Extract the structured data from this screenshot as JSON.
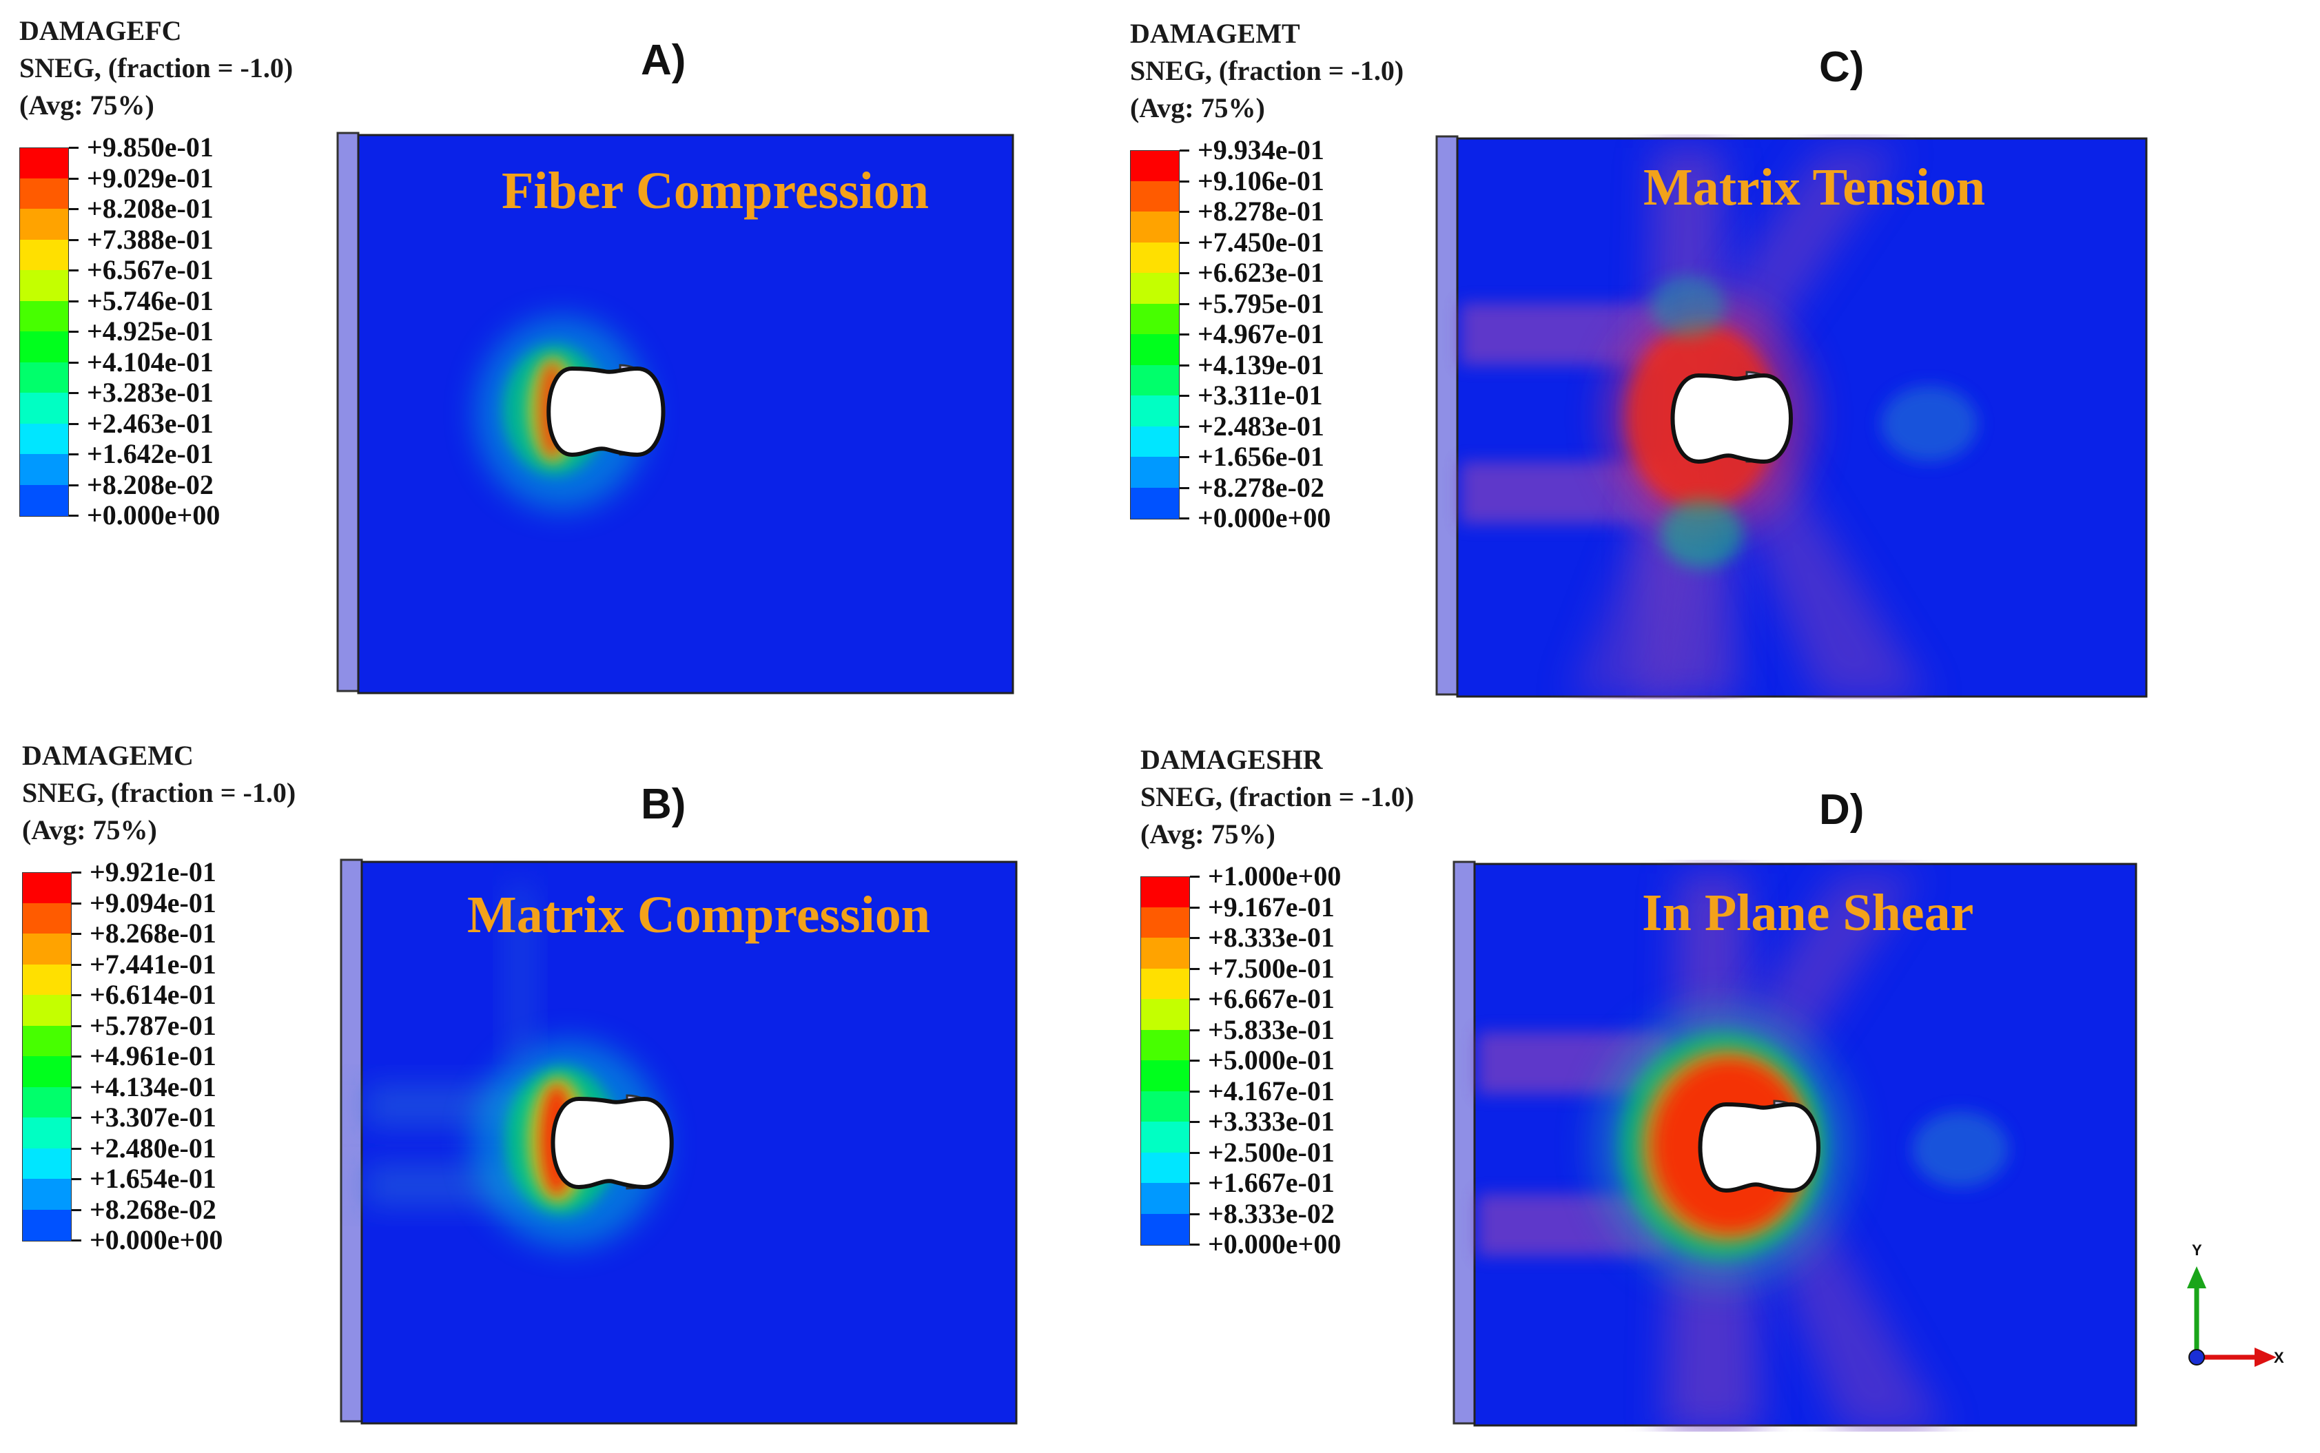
{
  "panels": {
    "a": {
      "letter": "A)",
      "caption": "Fiber Compression",
      "legend": {
        "line1": "DAMAGEFC",
        "line2": "SNEG, (fraction = -1.0)",
        "line3": "(Avg: 75%)",
        "values": [
          "+9.850e-01",
          "+9.029e-01",
          "+8.208e-01",
          "+7.388e-01",
          "+6.567e-01",
          "+5.746e-01",
          "+4.925e-01",
          "+4.104e-01",
          "+3.283e-01",
          "+2.463e-01",
          "+1.642e-01",
          "+8.208e-02",
          "+0.000e+00"
        ]
      }
    },
    "b": {
      "letter": "B)",
      "caption": "Matrix Compression",
      "legend": {
        "line1": "DAMAGEMC",
        "line2": "SNEG, (fraction = -1.0)",
        "line3": "(Avg: 75%)",
        "values": [
          "+9.921e-01",
          "+9.094e-01",
          "+8.268e-01",
          "+7.441e-01",
          "+6.614e-01",
          "+5.787e-01",
          "+4.961e-01",
          "+4.134e-01",
          "+3.307e-01",
          "+2.480e-01",
          "+1.654e-01",
          "+8.268e-02",
          "+0.000e+00"
        ]
      }
    },
    "c": {
      "letter": "C)",
      "caption": "Matrix Tension",
      "legend": {
        "line1": "DAMAGEMT",
        "line2": "SNEG, (fraction = -1.0)",
        "line3": "(Avg: 75%)",
        "values": [
          "+9.934e-01",
          "+9.106e-01",
          "+8.278e-01",
          "+7.450e-01",
          "+6.623e-01",
          "+5.795e-01",
          "+4.967e-01",
          "+4.139e-01",
          "+3.311e-01",
          "+2.483e-01",
          "+1.656e-01",
          "+8.278e-02",
          "+0.000e+00"
        ]
      }
    },
    "d": {
      "letter": "D)",
      "caption": "In Plane Shear",
      "legend": {
        "line1": "DAMAGESHR",
        "line2": "SNEG, (fraction = -1.0)",
        "line3": "(Avg: 75%)",
        "values": [
          "+1.000e+00",
          "+9.167e-01",
          "+8.333e-01",
          "+7.500e-01",
          "+6.667e-01",
          "+5.833e-01",
          "+5.000e-01",
          "+4.167e-01",
          "+3.333e-01",
          "+2.500e-01",
          "+1.667e-01",
          "+8.333e-02",
          "+0.000e+00"
        ]
      }
    }
  },
  "colormap": [
    "#ff0000",
    "#ff5b00",
    "#ffa300",
    "#ffe000",
    "#c4ff00",
    "#47ff00",
    "#00ff1d",
    "#00ff6b",
    "#00ffc3",
    "#00e6ff",
    "#0099ff",
    "#0052ff",
    "#0000ff"
  ],
  "axes": {
    "y_label": "Y",
    "x_label": "X"
  }
}
